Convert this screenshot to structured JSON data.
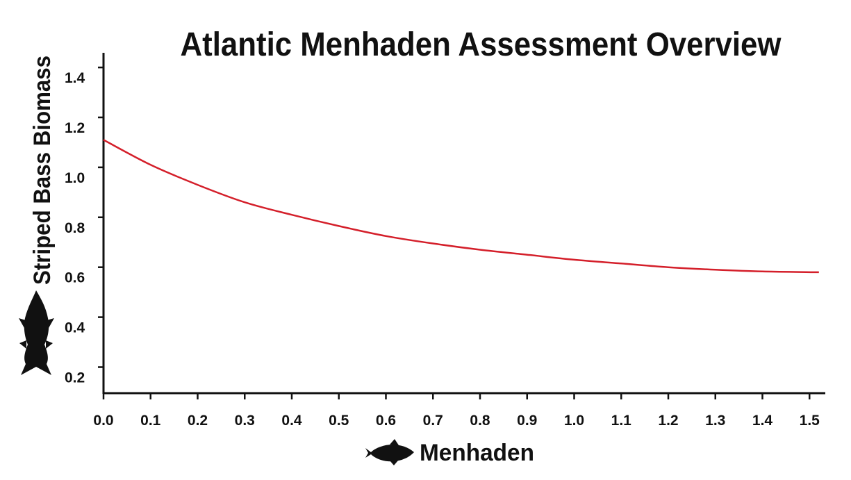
{
  "chart_data": {
    "type": "line",
    "title": "Atlantic Menhaden Assessment Overview",
    "xlabel": "Menhaden",
    "ylabel": "Striped Bass Biomass",
    "xlim": [
      0.0,
      1.53
    ],
    "ylim": [
      0.1,
      1.45
    ],
    "x_ticks": [
      "0.0",
      "0.1",
      "0.2",
      "0.3",
      "0.4",
      "0.5",
      "0.6",
      "0.7",
      "0.8",
      "0.9",
      "1.0",
      "1.1",
      "1.2",
      "1.3",
      "1.4",
      "1.5"
    ],
    "y_ticks": [
      "0.2",
      "0.4",
      "0.6",
      "0.8",
      "1.0",
      "1.2",
      "1.4"
    ],
    "grid": false,
    "series": [
      {
        "color": "#d41f2a",
        "x": [
          0.0,
          0.1,
          0.2,
          0.3,
          0.4,
          0.5,
          0.6,
          0.7,
          0.8,
          0.9,
          1.0,
          1.1,
          1.2,
          1.3,
          1.4,
          1.52
        ],
        "y": [
          1.11,
          1.01,
          0.93,
          0.86,
          0.81,
          0.765,
          0.725,
          0.695,
          0.67,
          0.65,
          0.63,
          0.615,
          0.6,
          0.59,
          0.583,
          0.58
        ]
      }
    ],
    "icons": {
      "y_axis_icon": "striped-bass-fish-icon",
      "x_axis_icon": "menhaden-fish-icon"
    }
  }
}
